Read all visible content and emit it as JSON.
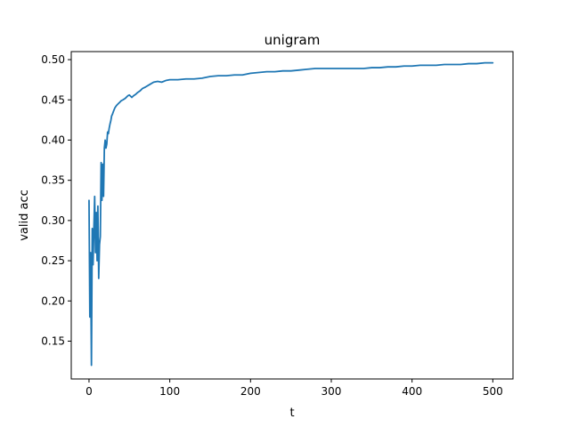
{
  "chart_data": {
    "type": "line",
    "title": "unigram",
    "xlabel": "t",
    "ylabel": "valid acc",
    "xlim": [
      -22,
      525
    ],
    "ylim": [
      0.103,
      0.51
    ],
    "x_ticks": [
      0,
      100,
      200,
      300,
      400,
      500
    ],
    "x_tick_labels": [
      "0",
      "100",
      "200",
      "300",
      "400",
      "500"
    ],
    "y_ticks": [
      0.15,
      0.2,
      0.25,
      0.3,
      0.35,
      0.4,
      0.45,
      0.5
    ],
    "y_tick_labels": [
      "0.15",
      "0.20",
      "0.25",
      "0.30",
      "0.35",
      "0.40",
      "0.45",
      "0.50"
    ],
    "grid": false,
    "line_color": "#1f77b4",
    "series": [
      {
        "x": [
          0,
          1,
          2,
          3,
          4,
          5,
          6,
          7,
          8,
          9,
          10,
          11,
          12,
          13,
          14,
          15,
          16,
          17,
          18,
          19,
          20,
          21,
          22,
          23,
          24,
          25,
          26,
          27,
          28,
          29,
          30,
          32,
          34,
          36,
          38,
          40,
          42,
          45,
          48,
          50,
          53,
          55,
          58,
          60,
          63,
          66,
          70,
          75,
          80,
          85,
          90,
          95,
          100,
          110,
          120,
          130,
          140,
          150,
          160,
          170,
          180,
          190,
          200,
          210,
          220,
          230,
          240,
          250,
          260,
          270,
          280,
          290,
          300,
          310,
          320,
          330,
          340,
          350,
          360,
          370,
          380,
          390,
          400,
          410,
          420,
          430,
          440,
          450,
          460,
          470,
          480,
          490,
          500
        ],
        "y": [
          0.325,
          0.18,
          0.26,
          0.12,
          0.29,
          0.245,
          0.29,
          0.33,
          0.26,
          0.31,
          0.25,
          0.318,
          0.228,
          0.27,
          0.28,
          0.372,
          0.325,
          0.37,
          0.33,
          0.39,
          0.4,
          0.39,
          0.395,
          0.41,
          0.408,
          0.415,
          0.42,
          0.424,
          0.43,
          0.432,
          0.435,
          0.44,
          0.443,
          0.445,
          0.447,
          0.449,
          0.45,
          0.452,
          0.455,
          0.456,
          0.453,
          0.455,
          0.457,
          0.459,
          0.461,
          0.464,
          0.466,
          0.469,
          0.472,
          0.473,
          0.472,
          0.474,
          0.475,
          0.475,
          0.476,
          0.476,
          0.477,
          0.479,
          0.48,
          0.48,
          0.481,
          0.481,
          0.483,
          0.484,
          0.485,
          0.485,
          0.486,
          0.486,
          0.487,
          0.488,
          0.489,
          0.489,
          0.489,
          0.489,
          0.489,
          0.489,
          0.489,
          0.49,
          0.49,
          0.491,
          0.491,
          0.492,
          0.492,
          0.493,
          0.493,
          0.493,
          0.494,
          0.494,
          0.494,
          0.495,
          0.495,
          0.496,
          0.496
        ]
      }
    ]
  }
}
